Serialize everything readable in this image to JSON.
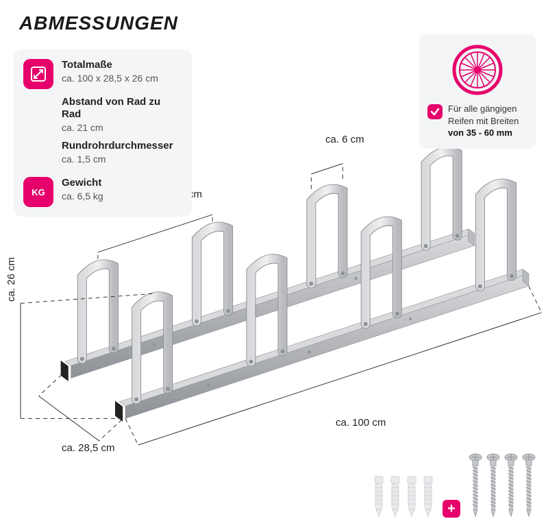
{
  "header": {
    "title": "ABMESSUNGEN"
  },
  "specs": [
    {
      "icon": "dimensions-icon",
      "label": "Totalmaße",
      "value": "ca. 100 x 28,5 x 26 cm"
    },
    {
      "icon": "",
      "label": "Abstand von Rad zu Rad",
      "value": "ca. 21 cm"
    },
    {
      "icon": "",
      "label": "Rundrohrdurchmesser",
      "value": "ca. 1,5 cm"
    },
    {
      "icon": "weight-icon",
      "label": "Gewicht",
      "value": "ca. 6,5 kg"
    }
  ],
  "tire": {
    "line1": "Für alle gängigen",
    "line2": "Reifen mit Breiten",
    "bold": "von 35 - 60 mm"
  },
  "diagram": {
    "slots": 4,
    "dimensions": {
      "height": "ca. 26 cm",
      "depth": "ca. 28,5 cm",
      "length": "ca. 100 cm",
      "slot_gap": "ca. 21 cm",
      "slot_width": "ca. 6 cm"
    },
    "colors": {
      "metal_light": "#d9dadc",
      "metal_mid": "#b9bbbf",
      "metal_dark": "#8e9196",
      "black_cap": "#222222",
      "accent": "#e6006b",
      "guide": "#333333",
      "panel_bg": "#f4f5f6"
    }
  },
  "hardware": {
    "wall_plugs": 4,
    "screws": 4,
    "plug_color": "#e9eaec",
    "plug_ridge": "#cfd1d4",
    "screw_color": "#c7c9cc",
    "screw_dark": "#9a9da2"
  }
}
